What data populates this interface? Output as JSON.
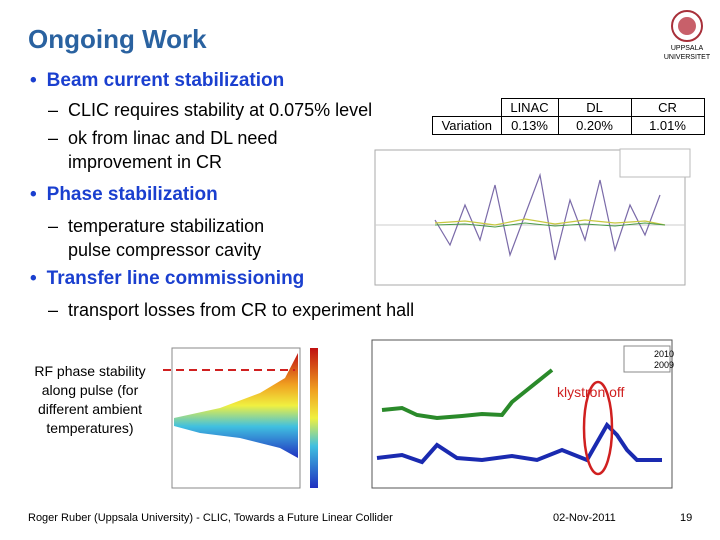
{
  "header": {
    "title": "Ongoing Work",
    "logo_text": [
      "UPPSALA",
      "UNIVERSITET"
    ]
  },
  "bullets": [
    {
      "text": "Beam current stabilization",
      "sub": [
        "CLIC requires stability at 0.075% level",
        "ok from linac and DL need improvement in CR"
      ]
    },
    {
      "text": "Phase stabilization",
      "sub": [
        "temperature stabilization pulse compressor cavity"
      ]
    },
    {
      "text": "Transfer line commissioning",
      "sub": [
        "transport losses from CR to experiment hall"
      ]
    }
  ],
  "table": {
    "row_label": "Variation",
    "columns": [
      "LINAC",
      "DL",
      "CR"
    ],
    "values": [
      "0.13%",
      "0.20%",
      "1.01%"
    ]
  },
  "figure_caption": "RF phase stability along pulse (for different ambient temperatures)",
  "annotation": "klystron off",
  "legend": [
    "2010",
    "2009"
  ],
  "footer": {
    "author": "Roger Ruber (Uppsala University) - CLIC, Towards a Future Linear Collider",
    "date": "02-Nov-2011",
    "page": "19"
  }
}
